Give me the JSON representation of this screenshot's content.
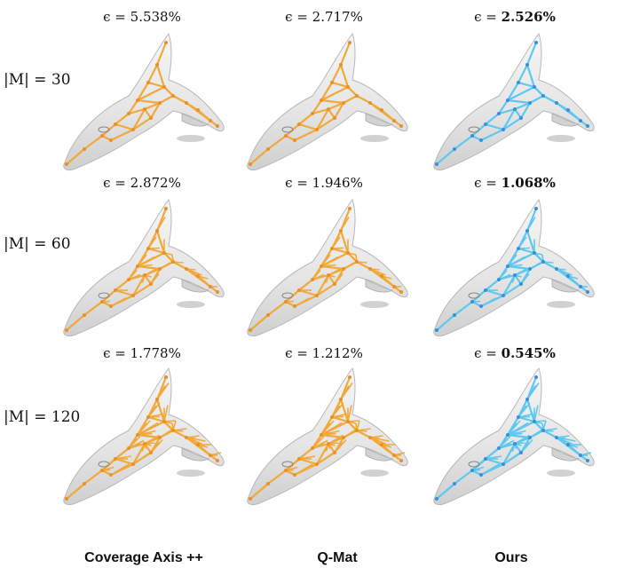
{
  "columns": [
    {
      "label": "Coverage Axis ++",
      "color": "#f2a93b",
      "node": "#e8912a"
    },
    {
      "label": "Q-Mat",
      "color": "#f2a93b",
      "node": "#e8912a"
    },
    {
      "label": "Ours",
      "color": "#5ec8f0",
      "node": "#3a8fd8"
    }
  ],
  "rows": [
    {
      "label": "|M| = 30",
      "errors": [
        "5.538%",
        "2.717%",
        "2.526%"
      ],
      "best": 2
    },
    {
      "label": "|M| = 60",
      "errors": [
        "2.872%",
        "1.946%",
        "1.068%"
      ],
      "best": 2
    },
    {
      "label": "|M| = 120",
      "errors": [
        "1.778%",
        "1.212%",
        "0.545%"
      ],
      "best": 2
    }
  ],
  "epsilon_symbol": "ϵ = "
}
